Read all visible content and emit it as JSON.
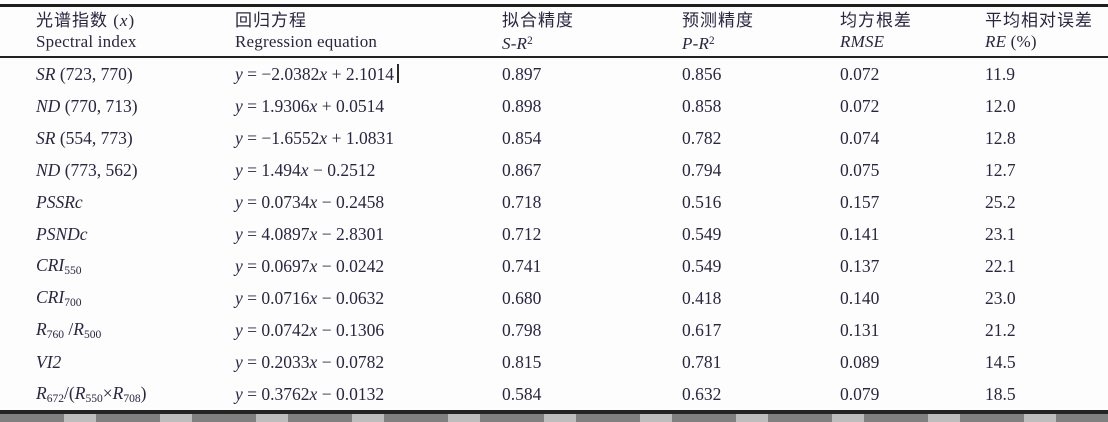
{
  "colors": {
    "text": "#2b2540",
    "rule": "#1e1e1e",
    "background": "#fdfdfe"
  },
  "table": {
    "columns": [
      {
        "key": "spectral-index",
        "zh_parts": [
          {
            "t": "光谱指数 (",
            "s": "n"
          },
          {
            "t": "x",
            "s": "i"
          },
          {
            "t": ")",
            "s": "n"
          }
        ],
        "en_parts": [
          {
            "t": "Spectral index",
            "s": "n"
          }
        ]
      },
      {
        "key": "regression-equation",
        "zh_parts": [
          {
            "t": "回归方程",
            "s": "n"
          }
        ],
        "en_parts": [
          {
            "t": "Regression equation",
            "s": "n"
          }
        ]
      },
      {
        "key": "s-r2",
        "zh_parts": [
          {
            "t": "拟合精度",
            "s": "n"
          }
        ],
        "en_parts": [
          {
            "t": "S-R",
            "s": "i"
          },
          {
            "t": "2",
            "s": "sup"
          }
        ]
      },
      {
        "key": "p-r2",
        "zh_parts": [
          {
            "t": "预测精度",
            "s": "n"
          }
        ],
        "en_parts": [
          {
            "t": "P-R",
            "s": "i"
          },
          {
            "t": "2",
            "s": "sup"
          }
        ]
      },
      {
        "key": "rmse",
        "zh_parts": [
          {
            "t": "均方根差",
            "s": "n"
          }
        ],
        "en_parts": [
          {
            "t": "RMSE",
            "s": "i"
          }
        ]
      },
      {
        "key": "re",
        "zh_parts": [
          {
            "t": "平均相对误差",
            "s": "n"
          }
        ],
        "en_parts": [
          {
            "t": "RE",
            "s": "i"
          },
          {
            "t": " (%)",
            "s": "n"
          }
        ]
      }
    ],
    "rows": [
      {
        "index_parts": [
          {
            "t": "SR",
            "s": "i"
          },
          {
            "t": " (723, 770)",
            "s": "n"
          }
        ],
        "equation": "y = −2.0382x + 2.1014",
        "cursor": true,
        "sr2": "0.897",
        "pr2": "0.856",
        "rmse": "0.072",
        "re": "11.9"
      },
      {
        "index_parts": [
          {
            "t": "ND",
            "s": "i"
          },
          {
            "t": " (770, 713)",
            "s": "n"
          }
        ],
        "equation": "y = 1.9306x + 0.0514",
        "sr2": "0.898",
        "pr2": "0.858",
        "rmse": "0.072",
        "re": "12.0"
      },
      {
        "index_parts": [
          {
            "t": "SR",
            "s": "i"
          },
          {
            "t": " (554, 773)",
            "s": "n"
          }
        ],
        "equation": "y = −1.6552x + 1.0831",
        "sr2": "0.854",
        "pr2": "0.782",
        "rmse": "0.074",
        "re": "12.8"
      },
      {
        "index_parts": [
          {
            "t": "ND",
            "s": "i"
          },
          {
            "t": " (773, 562)",
            "s": "n"
          }
        ],
        "equation": "y = 1.494x − 0.2512",
        "sr2": "0.867",
        "pr2": "0.794",
        "rmse": "0.075",
        "re": "12.7"
      },
      {
        "index_parts": [
          {
            "t": "PSSRc",
            "s": "i"
          }
        ],
        "equation": "y = 0.0734x − 0.2458",
        "sr2": "0.718",
        "pr2": "0.516",
        "rmse": "0.157",
        "re": "25.2"
      },
      {
        "index_parts": [
          {
            "t": "PSNDc",
            "s": "i"
          }
        ],
        "equation": "y = 4.0897x − 2.8301",
        "sr2": "0.712",
        "pr2": "0.549",
        "rmse": "0.141",
        "re": "23.1"
      },
      {
        "index_parts": [
          {
            "t": "CRI",
            "s": "i"
          },
          {
            "t": "550",
            "s": "sub"
          }
        ],
        "equation": "y = 0.0697x − 0.0242",
        "sr2": "0.741",
        "pr2": "0.549",
        "rmse": "0.137",
        "re": "22.1"
      },
      {
        "index_parts": [
          {
            "t": "CRI",
            "s": "i"
          },
          {
            "t": "700",
            "s": "sub"
          }
        ],
        "equation": "y = 0.0716x − 0.0632",
        "sr2": "0.680",
        "pr2": "0.418",
        "rmse": "0.140",
        "re": "23.0"
      },
      {
        "index_parts": [
          {
            "t": "R",
            "s": "i"
          },
          {
            "t": "760",
            "s": "sub"
          },
          {
            "t": " /",
            "s": "n"
          },
          {
            "t": "R",
            "s": "i"
          },
          {
            "t": "500",
            "s": "sub"
          }
        ],
        "equation": "y = 0.0742x − 0.1306",
        "sr2": "0.798",
        "pr2": "0.617",
        "rmse": "0.131",
        "re": "21.2"
      },
      {
        "index_parts": [
          {
            "t": "VI2",
            "s": "i"
          }
        ],
        "equation": "y = 0.2033x − 0.0782",
        "sr2": "0.815",
        "pr2": "0.781",
        "rmse": "0.089",
        "re": "14.5"
      },
      {
        "index_parts": [
          {
            "t": "R",
            "s": "i"
          },
          {
            "t": "672",
            "s": "sub"
          },
          {
            "t": "/(",
            "s": "n"
          },
          {
            "t": "R",
            "s": "i"
          },
          {
            "t": "550",
            "s": "sub"
          },
          {
            "t": "×",
            "s": "n"
          },
          {
            "t": "R",
            "s": "i"
          },
          {
            "t": "708",
            "s": "sub"
          },
          {
            "t": ")",
            "s": "n"
          }
        ],
        "equation": "y = 0.3762x − 0.0132",
        "sr2": "0.584",
        "pr2": "0.632",
        "rmse": "0.079",
        "re": "18.5"
      }
    ]
  }
}
